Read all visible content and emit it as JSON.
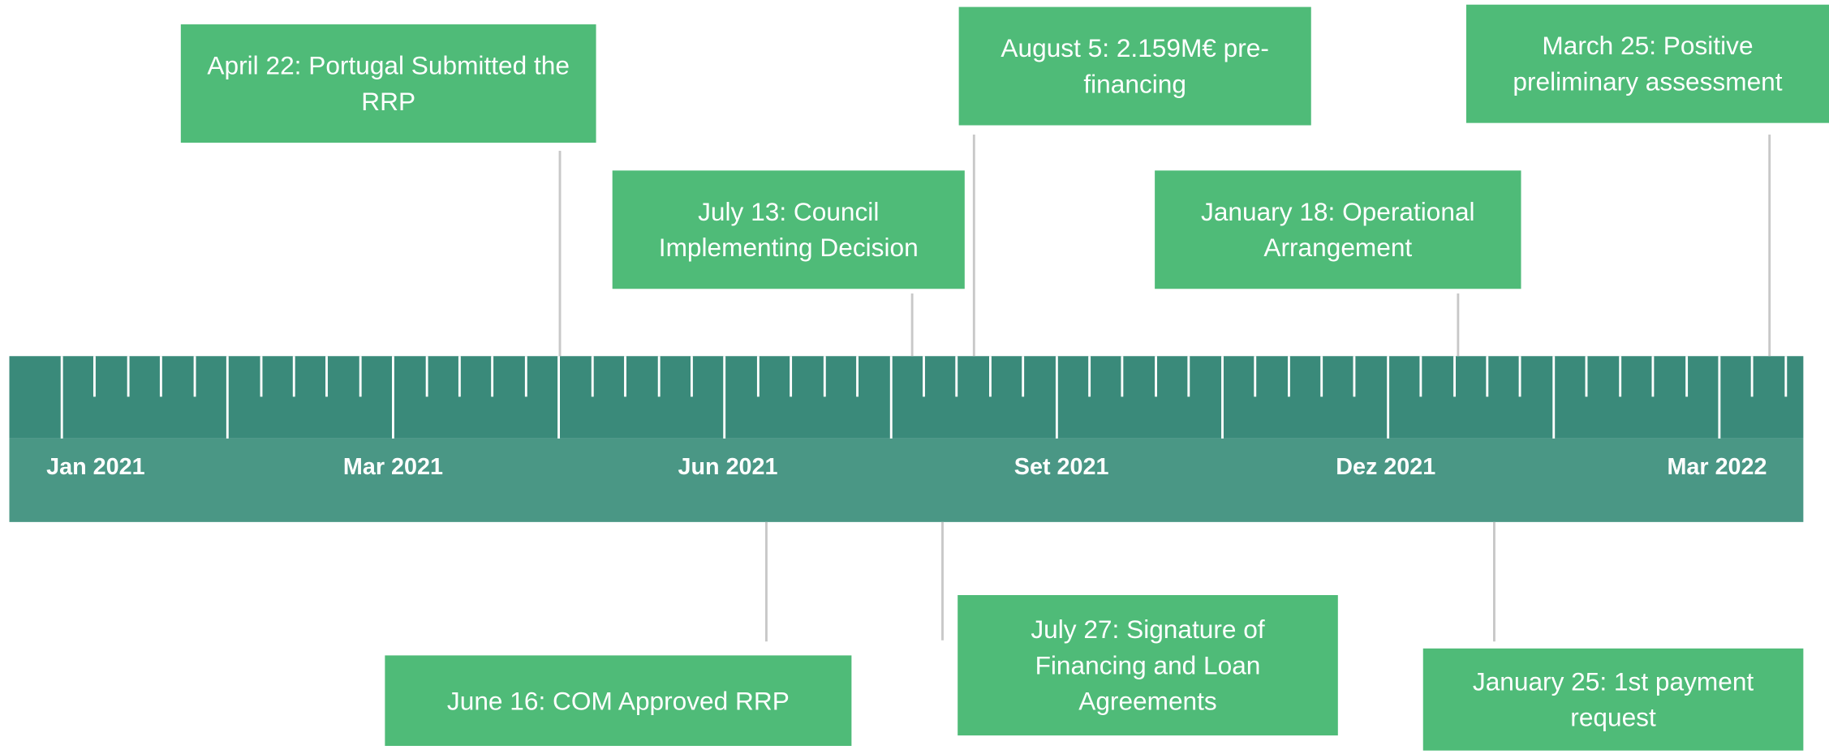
{
  "axis": {
    "labels": [
      "Jan 2021",
      "Mar 2021",
      "Jun 2021",
      "Set 2021",
      "Dez 2021",
      "Mar 2022"
    ]
  },
  "events": [
    {
      "label": "April 22: Portugal Submitted the RRP"
    },
    {
      "label": "July 13: Council Implementing Decision"
    },
    {
      "label": "August 5: 2.159M€ pre-financing"
    },
    {
      "label": "January 18: Operational Arrangement"
    },
    {
      "label": "March 25: Positive preliminary assessment"
    },
    {
      "label": "June 16: COM Approved RRP"
    },
    {
      "label": "July 27: Signature of Financing and Loan Agreements"
    },
    {
      "label": "January 25: 1st payment request"
    }
  ]
}
